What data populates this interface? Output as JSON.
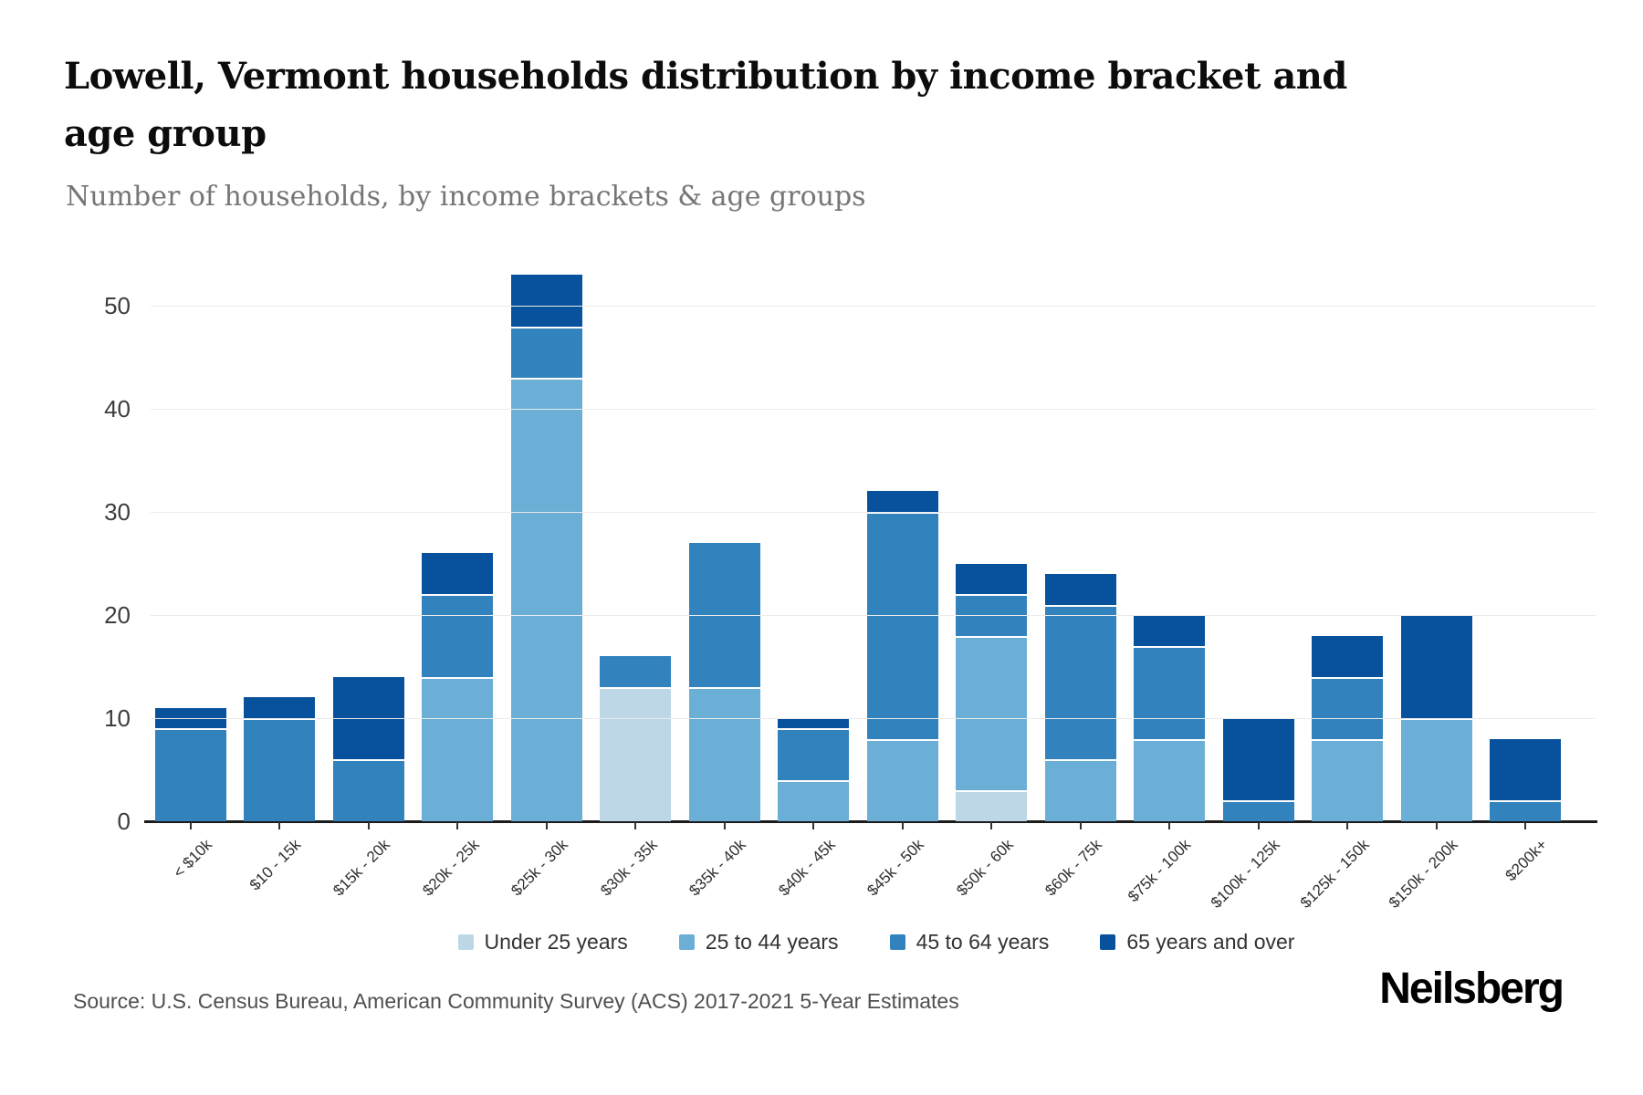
{
  "header": {
    "title": "Lowell, Vermont households distribution by income bracket and age group",
    "subtitle": "Number of households, by income brackets & age groups"
  },
  "chart_data": {
    "type": "bar",
    "stacked": true,
    "title": "Lowell, Vermont households distribution by income bracket and age group",
    "xlabel": "",
    "ylabel": "Number of households",
    "categories": [
      "< $10k",
      "$10 - 15k",
      "$15k - 20k",
      "$20k - 25k",
      "$25k - 30k",
      "$30k - 35k",
      "$35k - 40k",
      "$40k - 45k",
      "$45k - 50k",
      "$50k - 60k",
      "$60k - 75k",
      "$75k - 100k",
      "$100k - 125k",
      "$125k - 150k",
      "$150k - 200k",
      "$200k+"
    ],
    "series": [
      {
        "name": "Under 25 years",
        "color": "#bdd7e7",
        "values": [
          0,
          0,
          0,
          0,
          0,
          13,
          0,
          0,
          0,
          3,
          0,
          0,
          0,
          0,
          0,
          0
        ]
      },
      {
        "name": "25 to 44 years",
        "color": "#6baed6",
        "values": [
          0,
          0,
          0,
          14,
          43,
          0,
          13,
          4,
          8,
          15,
          6,
          8,
          0,
          8,
          10,
          0
        ]
      },
      {
        "name": "45 to 64 years",
        "color": "#3182bd",
        "values": [
          9,
          10,
          6,
          8,
          5,
          3,
          14,
          5,
          22,
          4,
          15,
          9,
          2,
          6,
          0,
          2
        ]
      },
      {
        "name": "65 years and over",
        "color": "#08519c",
        "values": [
          2,
          2,
          8,
          4,
          5,
          0,
          0,
          1,
          2,
          3,
          3,
          3,
          8,
          4,
          10,
          6
        ]
      }
    ],
    "totals": [
      11,
      12,
      14,
      26,
      53,
      16,
      27,
      10,
      32,
      25,
      24,
      20,
      10,
      18,
      20,
      8
    ],
    "y_ticks": [
      0,
      10,
      20,
      30,
      40,
      50
    ],
    "ylim": [
      0,
      57
    ],
    "grid": true,
    "legend_position": "bottom"
  },
  "footer": {
    "source": "Source: U.S. Census Bureau, American Community Survey (ACS) 2017-2021 5-Year Estimates",
    "brand": "Neilsberg"
  }
}
